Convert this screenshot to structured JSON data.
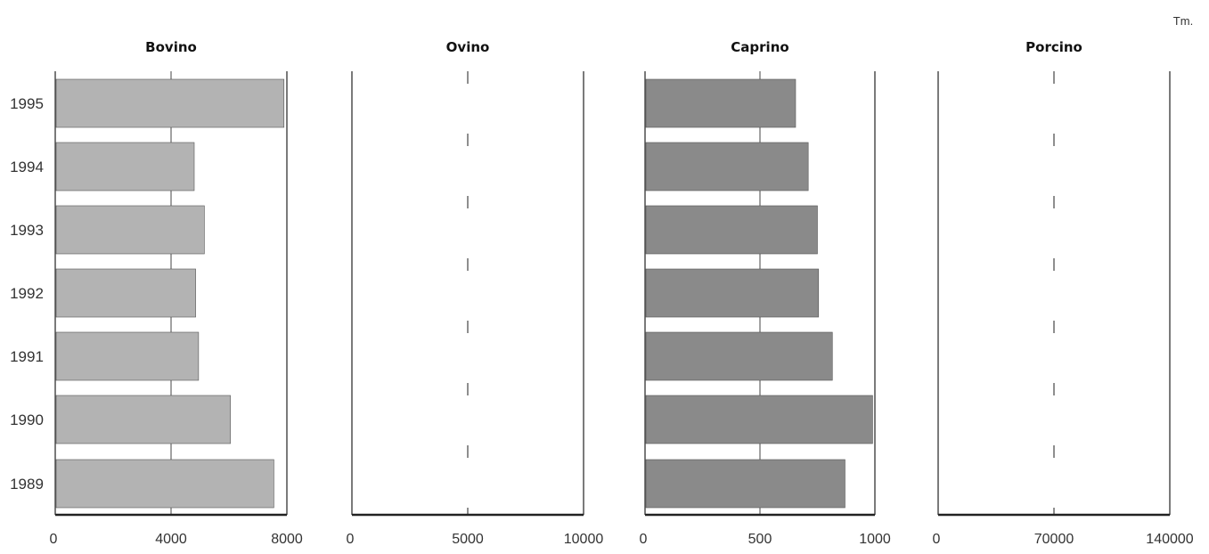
{
  "unit": "Tm.",
  "colors": {
    "Bovino": "#b3b3b3",
    "Caprino": "#8a8a8a",
    "axis": "#222222"
  },
  "chart_data": [
    {
      "type": "bar",
      "orientation": "horizontal",
      "title": "Bovino",
      "categories": [
        "1995",
        "1994",
        "1993",
        "1992",
        "1991",
        "1990",
        "1989"
      ],
      "values": [
        7900,
        4800,
        5150,
        4850,
        4950,
        6050,
        7550
      ],
      "xlim": [
        0,
        8000
      ],
      "xticks": [
        "0",
        "4000",
        "8000"
      ],
      "grid": true
    },
    {
      "type": "bar",
      "orientation": "horizontal",
      "title": "Ovino",
      "categories": [
        "1995",
        "1994",
        "1993",
        "1992",
        "1991",
        "1990",
        "1989"
      ],
      "values": [
        0,
        0,
        0,
        0,
        0,
        0,
        0
      ],
      "xlim": [
        0,
        10000
      ],
      "xticks": [
        "0",
        "5000",
        "10000"
      ],
      "grid": true
    },
    {
      "type": "bar",
      "orientation": "horizontal",
      "title": "Caprino",
      "categories": [
        "1995",
        "1994",
        "1993",
        "1992",
        "1991",
        "1990",
        "1989"
      ],
      "values": [
        655,
        710,
        750,
        755,
        815,
        990,
        870
      ],
      "xlim": [
        0,
        1000
      ],
      "xticks": [
        "0",
        "500",
        "1000"
      ],
      "grid": true
    },
    {
      "type": "bar",
      "orientation": "horizontal",
      "title": "Porcino",
      "categories": [
        "1995",
        "1994",
        "1993",
        "1992",
        "1991",
        "1990",
        "1989"
      ],
      "values": [
        0,
        0,
        0,
        0,
        0,
        0,
        0
      ],
      "xlim": [
        0,
        140000
      ],
      "xticks": [
        "0",
        "70000",
        "140000"
      ],
      "grid": true
    }
  ]
}
